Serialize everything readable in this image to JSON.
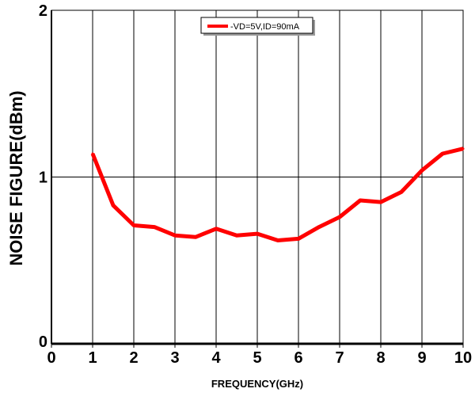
{
  "chart_data": {
    "type": "line",
    "xlabel": "FREQUENCY(GHz)",
    "ylabel": "NOISE FIGURE(dBm)",
    "xlim": [
      0,
      10
    ],
    "ylim": [
      0,
      2
    ],
    "x_ticks": [
      "0",
      "1",
      "2",
      "3",
      "4",
      "5",
      "6",
      "7",
      "8",
      "9",
      "10"
    ],
    "y_ticks": [
      "0",
      "1",
      "2"
    ],
    "grid": true,
    "legend_position": "top-center",
    "series": [
      {
        "name": "-VD=5V,ID=90mA",
        "color": "#ff0000",
        "x": [
          1,
          1.5,
          2,
          2.5,
          3,
          3.5,
          4,
          4.5,
          5,
          5.5,
          6,
          6.5,
          7,
          7.5,
          8,
          8.5,
          9,
          9.5,
          10
        ],
        "y": [
          1.14,
          0.83,
          0.71,
          0.7,
          0.65,
          0.64,
          0.69,
          0.65,
          0.66,
          0.62,
          0.63,
          0.7,
          0.76,
          0.86,
          0.85,
          0.91,
          1.04,
          1.14,
          1.17
        ]
      }
    ]
  }
}
